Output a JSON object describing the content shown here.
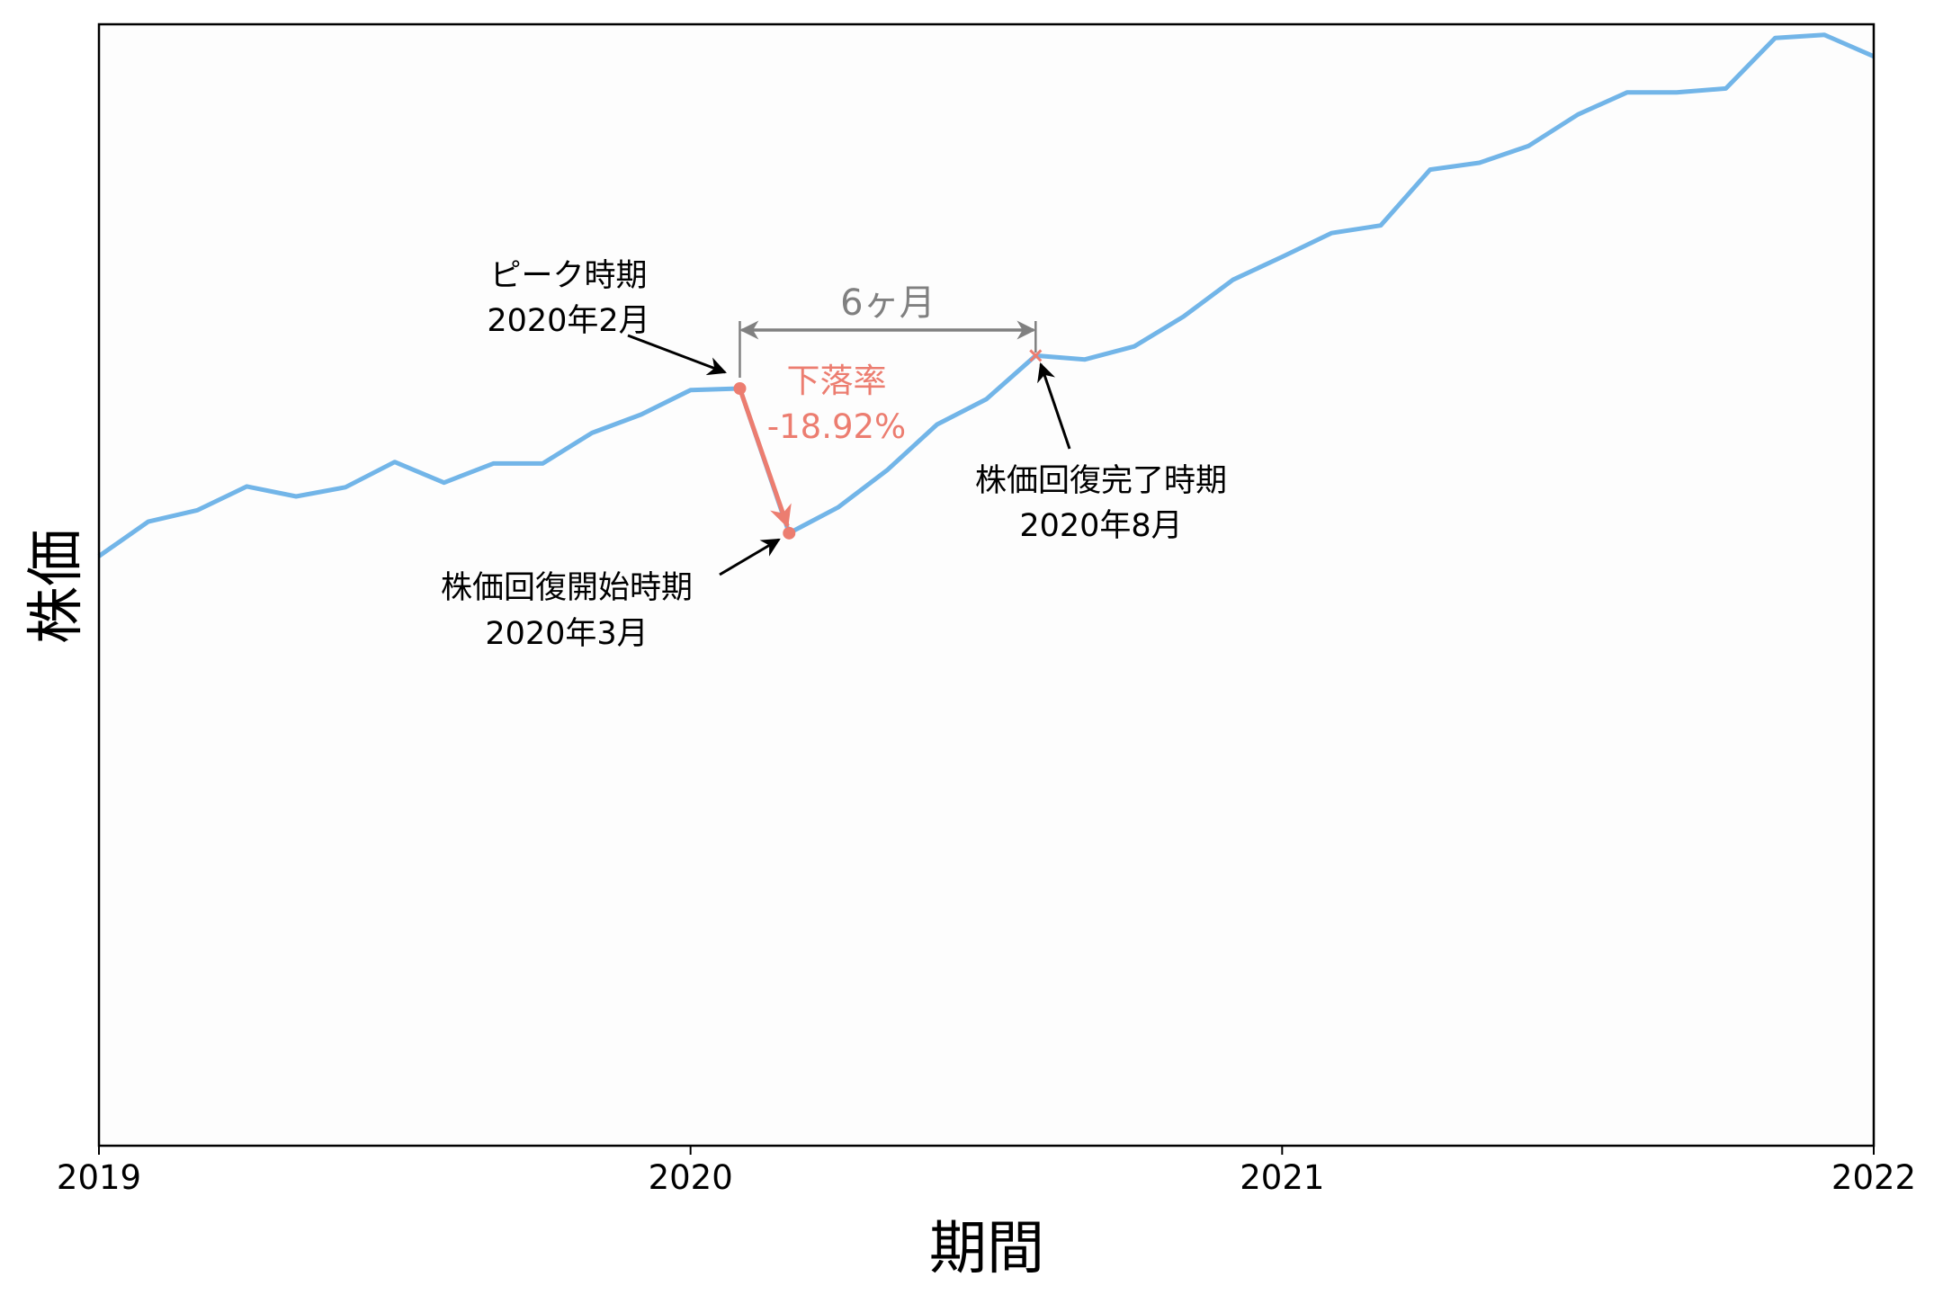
{
  "colors": {
    "line": "#72B5E8",
    "accent": "#EC7D70",
    "span": "#808080",
    "text": "#000000",
    "plot_bg": "#FDFDFD"
  },
  "axes": {
    "xlabel": "期間",
    "ylabel": "株価",
    "xticks": [
      {
        "label": "2019",
        "month_index": 0
      },
      {
        "label": "2020",
        "month_index": 12
      },
      {
        "label": "2021",
        "month_index": 24
      },
      {
        "label": "2022",
        "month_index": 36
      }
    ]
  },
  "annotations": {
    "peak": {
      "line1": "ピーク時期",
      "line2": "2020年2月",
      "month_index": 13
    },
    "trough": {
      "line1": "株価回復開始時期",
      "line2": "2020年3月",
      "month_index": 14
    },
    "recovery": {
      "line1": "株価回復完了時期",
      "line2": "2020年8月",
      "month_index": 19
    },
    "drop": {
      "line1": "下落率",
      "line2": "-18.92%"
    },
    "span": {
      "label": "6ヶ月"
    }
  },
  "chart_data": {
    "type": "line",
    "title": "",
    "xlabel": "期間",
    "ylabel": "株価",
    "x_tick_labels": [
      "2019",
      "2020",
      "2021",
      "2022"
    ],
    "xlim": [
      "2019-01",
      "2022-01"
    ],
    "ylim": [
      0,
      147.5
    ],
    "y_ticks_visible": false,
    "grid": false,
    "legend": null,
    "x": [
      "2019-01",
      "2019-02",
      "2019-03",
      "2019-04",
      "2019-05",
      "2019-06",
      "2019-07",
      "2019-08",
      "2019-09",
      "2019-10",
      "2019-11",
      "2019-12",
      "2020-01",
      "2020-02",
      "2020-03",
      "2020-04",
      "2020-05",
      "2020-06",
      "2020-07",
      "2020-08",
      "2020-09",
      "2020-10",
      "2020-11",
      "2020-12",
      "2021-01",
      "2021-02",
      "2021-03",
      "2021-04",
      "2021-05",
      "2021-06",
      "2021-07",
      "2021-08",
      "2021-09",
      "2021-10",
      "2021-11",
      "2021-12",
      "2022-01"
    ],
    "series": [
      {
        "name": "株価",
        "values": [
          78.1,
          82.6,
          84.1,
          87.2,
          85.9,
          87.1,
          90.4,
          87.7,
          90.2,
          90.2,
          94.2,
          96.6,
          99.8,
          100.0,
          81.1,
          84.5,
          89.4,
          95.3,
          98.6,
          104.3,
          103.8,
          105.5,
          109.4,
          114.2,
          117.2,
          120.3,
          121.3,
          128.6,
          129.5,
          131.7,
          135.8,
          138.7,
          138.7,
          139.2,
          145.8,
          146.2,
          143.4
        ]
      }
    ],
    "annotations": [
      {
        "text": "ピーク時期\n2020年2月",
        "x": "2020-02",
        "marker": "circle"
      },
      {
        "text": "株価回復開始時期\n2020年3月",
        "x": "2020-03",
        "marker": "circle"
      },
      {
        "text": "株価回復完了時期\n2020年8月",
        "x": "2020-08",
        "marker": "x"
      },
      {
        "text": "下落率\n-18.92%",
        "from": "2020-02",
        "to": "2020-03"
      },
      {
        "text": "6ヶ月",
        "from": "2020-02",
        "to": "2020-08"
      }
    ]
  }
}
